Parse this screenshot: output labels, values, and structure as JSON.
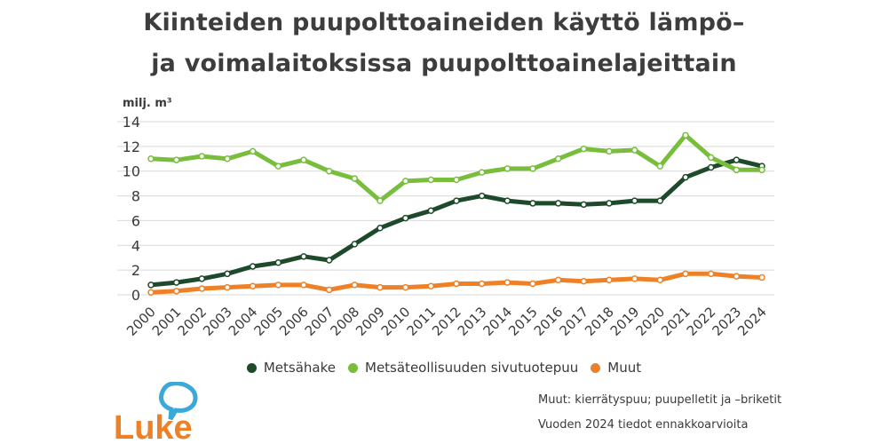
{
  "title_line1": "Kiinteiden puupolttoaineiden käyttö lämpö–",
  "title_line2": "ja voimalaitoksissa puupolttoainelajeittain",
  "chart_data": {
    "type": "line",
    "ylabel": "milj. m³",
    "ylim": [
      0,
      14
    ],
    "yticks": [
      0,
      2,
      4,
      6,
      8,
      10,
      12,
      14
    ],
    "grid": true,
    "legend_position": "bottom",
    "x": [
      "2000",
      "2001",
      "2002",
      "2003",
      "2004",
      "2005",
      "2006",
      "2007",
      "2008",
      "2009",
      "2010",
      "2011",
      "2012",
      "2013",
      "2014",
      "2015",
      "2016",
      "2017",
      "2018",
      "2019",
      "2020",
      "2021",
      "2022",
      "2023",
      "2024"
    ],
    "series": [
      {
        "name": "Metsähake",
        "color": "#1e4a2c",
        "values": [
          0.8,
          1.0,
          1.3,
          1.7,
          2.3,
          2.6,
          3.1,
          2.8,
          4.1,
          5.4,
          6.2,
          6.8,
          7.6,
          8.0,
          7.6,
          7.4,
          7.4,
          7.3,
          7.4,
          7.6,
          7.6,
          9.5,
          10.3,
          10.9,
          10.4
        ]
      },
      {
        "name": "Metsäteollisuuden sivutuotepuu",
        "color": "#78be3c",
        "values": [
          11.0,
          10.9,
          11.2,
          11.0,
          11.6,
          10.4,
          10.9,
          10.0,
          9.4,
          7.6,
          9.2,
          9.3,
          9.3,
          9.9,
          10.2,
          10.2,
          11.0,
          11.8,
          11.6,
          11.7,
          10.4,
          12.9,
          11.1,
          10.1,
          10.1
        ]
      },
      {
        "name": "Muut",
        "color": "#ee8127",
        "values": [
          0.2,
          0.3,
          0.5,
          0.6,
          0.7,
          0.8,
          0.8,
          0.4,
          0.8,
          0.6,
          0.6,
          0.7,
          0.9,
          0.9,
          1.0,
          0.9,
          1.2,
          1.1,
          1.2,
          1.3,
          1.2,
          1.7,
          1.7,
          1.5,
          1.4
        ]
      }
    ]
  },
  "notes": {
    "line1": "Muut: kierrätyspuu; puupelletit ja –briketit",
    "line2": "Vuoden 2024 tiedot ennakkoarvioita"
  },
  "logo_text": "Luke",
  "colors": {
    "logo_orange": "#ee8127",
    "logo_blue": "#3aa8d8"
  }
}
